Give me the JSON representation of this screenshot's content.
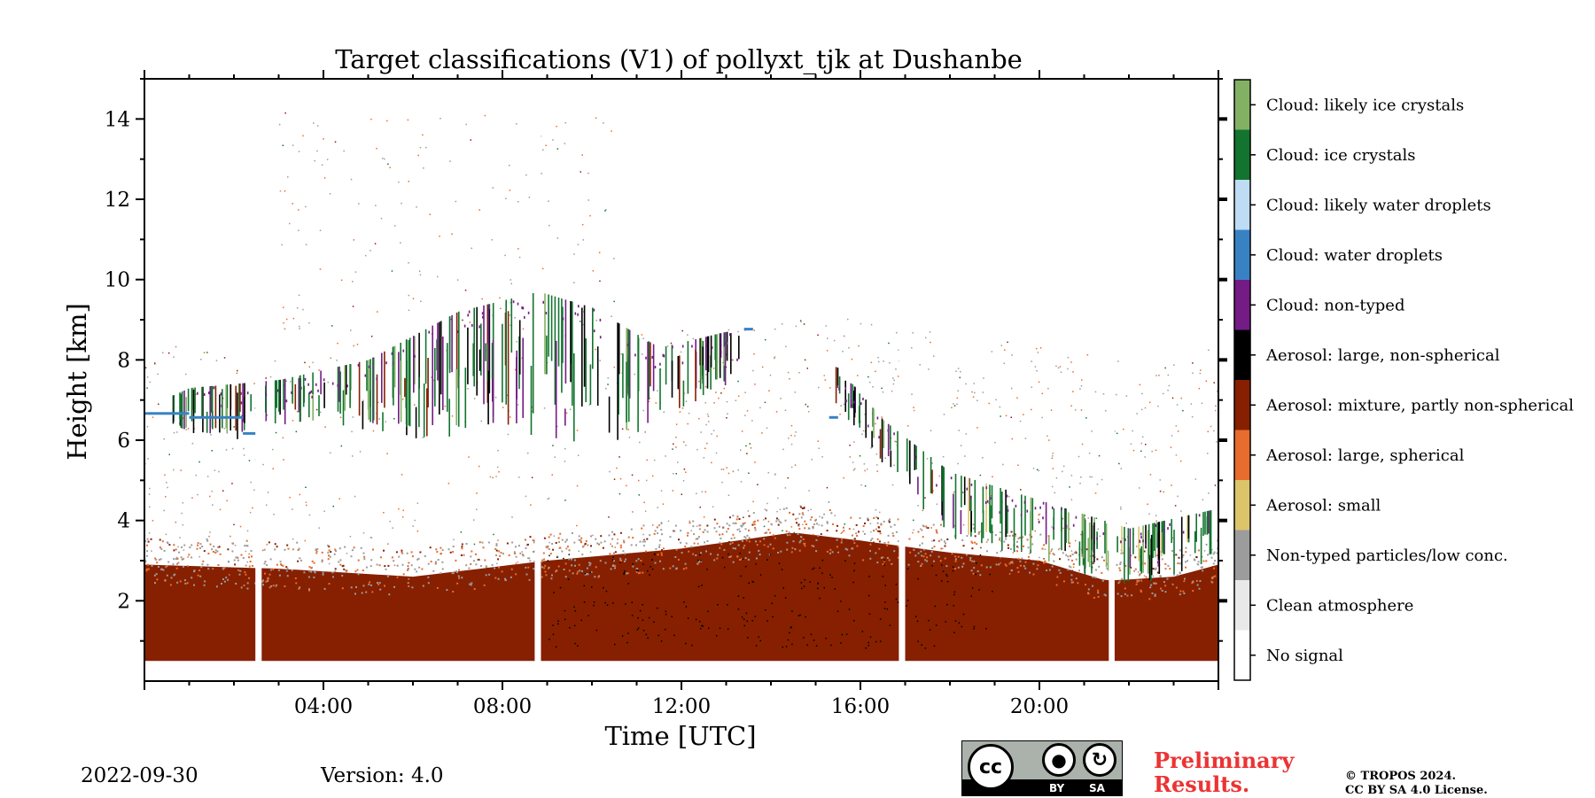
{
  "chart_data": {
    "type": "heatmap",
    "title": "Target classifications (V1) of pollyxt_tjk at Dushanbe",
    "xlabel": "Time [UTC]",
    "ylabel": "Height [km]",
    "xlim_hours": [
      0,
      24
    ],
    "ylim_km": [
      0,
      15
    ],
    "x_ticks": [
      {
        "label": "04:00",
        "hour": 4
      },
      {
        "label": "08:00",
        "hour": 8
      },
      {
        "label": "12:00",
        "hour": 12
      },
      {
        "label": "16:00",
        "hour": 16
      },
      {
        "label": "20:00",
        "hour": 20
      }
    ],
    "y_ticks": [
      {
        "label": "2",
        "km": 2
      },
      {
        "label": "4",
        "km": 4
      },
      {
        "label": "6",
        "km": 6
      },
      {
        "label": "8",
        "km": 8
      },
      {
        "label": "10",
        "km": 10
      },
      {
        "label": "14",
        "km": 14
      },
      {
        "label": "12",
        "km": 12
      }
    ],
    "classes": [
      {
        "label": "Cloud: likely ice crystals",
        "color": "#82b164"
      },
      {
        "label": "Cloud: ice crystals",
        "color": "#12742e"
      },
      {
        "label": "Cloud: likely water droplets",
        "color": "#bedcf3"
      },
      {
        "label": "Cloud: water droplets",
        "color": "#3882c4"
      },
      {
        "label": "Cloud: non-typed",
        "color": "#741b85"
      },
      {
        "label": "Aerosol: large, non-spherical",
        "color": "#000000"
      },
      {
        "label": "Aerosol: mixture, partly non-spherical",
        "color": "#862001"
      },
      {
        "label": "Aerosol: large, spherical",
        "color": "#e76c2d"
      },
      {
        "label": "Aerosol: small",
        "color": "#dcc46a"
      },
      {
        "label": "Non-typed particles/low conc.",
        "color": "#9c9c9c"
      },
      {
        "label": "Clean atmosphere",
        "color": "#e9e9e9"
      },
      {
        "label": "No signal",
        "color": "#ffffff"
      }
    ],
    "data_gaps_hours": [
      [
        2.48,
        2.62
      ],
      [
        8.72,
        8.86
      ],
      [
        16.86,
        17.0
      ],
      [
        21.55,
        21.68
      ]
    ],
    "min_height_km": 0.5,
    "aerosol_top_km": [
      {
        "t": 0,
        "h": 2.9
      },
      {
        "t": 3,
        "h": 2.8
      },
      {
        "t": 6,
        "h": 2.6
      },
      {
        "t": 9,
        "h": 3.0
      },
      {
        "t": 12,
        "h": 3.3
      },
      {
        "t": 14.5,
        "h": 3.7
      },
      {
        "t": 16,
        "h": 3.5
      },
      {
        "t": 18,
        "h": 3.2
      },
      {
        "t": 20,
        "h": 3.0
      },
      {
        "t": 21.5,
        "h": 2.5
      },
      {
        "t": 23,
        "h": 2.6
      },
      {
        "t": 24,
        "h": 2.9
      }
    ],
    "cloud_top_km": [
      {
        "t": 0,
        "h": 6.8
      },
      {
        "t": 1,
        "h": 7.3
      },
      {
        "t": 3,
        "h": 7.5
      },
      {
        "t": 5,
        "h": 8.0
      },
      {
        "t": 7,
        "h": 9.2
      },
      {
        "t": 8.8,
        "h": 9.7
      },
      {
        "t": 10,
        "h": 9.3
      },
      {
        "t": 11.5,
        "h": 8.3
      },
      {
        "t": 13,
        "h": 8.7
      },
      {
        "t": 15.5,
        "h": 7.8
      },
      {
        "t": 16.5,
        "h": 6.5
      },
      {
        "t": 18,
        "h": 5.2
      },
      {
        "t": 20,
        "h": 4.5
      },
      {
        "t": 22,
        "h": 3.8
      },
      {
        "t": 24,
        "h": 4.3
      }
    ],
    "cloud_base_km": [
      {
        "t": 0,
        "h": 6.3
      },
      {
        "t": 2,
        "h": 6.0
      },
      {
        "t": 4,
        "h": 6.4
      },
      {
        "t": 6,
        "h": 6.0
      },
      {
        "t": 8,
        "h": 6.2
      },
      {
        "t": 10.5,
        "h": 5.8
      },
      {
        "t": 12,
        "h": 6.7
      },
      {
        "t": 13.5,
        "h": 7.6
      },
      {
        "t": 15.5,
        "h": 6.8
      },
      {
        "t": 16.5,
        "h": 5.3
      },
      {
        "t": 18,
        "h": 3.5
      },
      {
        "t": 20,
        "h": 3.0
      },
      {
        "t": 22,
        "h": 2.3
      },
      {
        "t": 24,
        "h": 3.0
      }
    ]
  },
  "footer": {
    "date": "2022-09-30",
    "version": "Version: 4.0",
    "preliminary": [
      "Preliminary",
      "Results."
    ],
    "copyright": [
      "© TROPOS 2024.",
      "CC BY SA 4.0 License."
    ]
  },
  "license_badge": {
    "cc": "cc",
    "by": "BY",
    "sa": "SA"
  }
}
